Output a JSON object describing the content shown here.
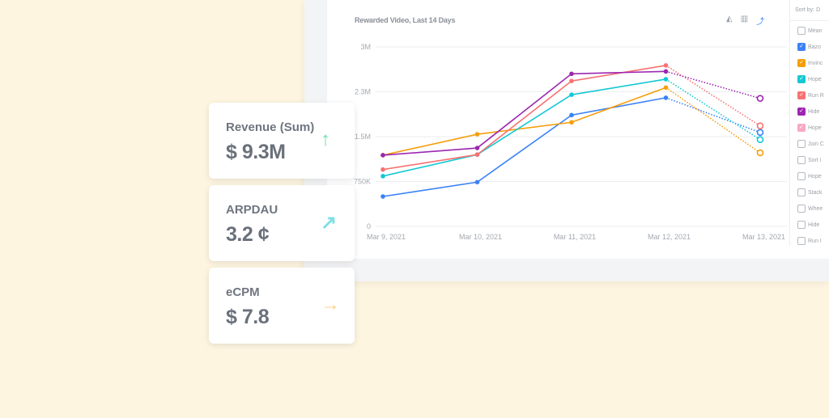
{
  "chart_title": "Rewarded Video, Last 14 Days",
  "toolbar": {
    "icons": [
      "area-chart-icon",
      "bar-chart-icon",
      "line-chart-icon"
    ],
    "active": "line-chart-icon"
  },
  "legend": {
    "sort_label": "Sort by: D",
    "items": [
      {
        "label": "Mean",
        "checked": false,
        "color": ""
      },
      {
        "label": "Bazo",
        "checked": true,
        "color": "#3b82f6"
      },
      {
        "label": "Invinc",
        "checked": true,
        "color": "#f59e0b"
      },
      {
        "label": "Hope",
        "checked": true,
        "color": "#14c8d4"
      },
      {
        "label": "Run R",
        "checked": true,
        "color": "#f87171"
      },
      {
        "label": "Hide",
        "checked": true,
        "color": "#9c27b0"
      },
      {
        "label": "Hope",
        "checked": true,
        "color": "#f9a8c4"
      },
      {
        "label": "Join C",
        "checked": false,
        "color": ""
      },
      {
        "label": "Sort i",
        "checked": false,
        "color": ""
      },
      {
        "label": "Hope",
        "checked": false,
        "color": ""
      },
      {
        "label": "Stack",
        "checked": false,
        "color": ""
      },
      {
        "label": "Whee",
        "checked": false,
        "color": ""
      },
      {
        "label": "Hide",
        "checked": false,
        "color": ""
      },
      {
        "label": "Run I",
        "checked": false,
        "color": ""
      }
    ]
  },
  "cards": [
    {
      "label": "Revenue (Sum)",
      "value": "$ 9.3M",
      "trend": "up",
      "arrow": "↑",
      "color": "#6ee0a8"
    },
    {
      "label": "ARPDAU",
      "value": "3.2 ¢",
      "trend": "up-right",
      "arrow": "↗",
      "color": "#7ee0e6"
    },
    {
      "label": "eCPM",
      "value": "$ 7.8",
      "trend": "flat",
      "arrow": "→",
      "color": "#fcd38a"
    }
  ],
  "chart_data": {
    "type": "line",
    "title": "Rewarded Video, Last 14 Days",
    "categories": [
      "Mar 9, 2021",
      "Mar 10, 2021",
      "Mar 11, 2021",
      "Mar 12, 2021",
      "Mar 13, 2021"
    ],
    "yticks": [
      {
        "v": 0,
        "label": "0"
      },
      {
        "v": 750000,
        "label": "750K"
      },
      {
        "v": 1500000,
        "label": "1.5M"
      },
      {
        "v": 2250000,
        "label": "2.3M"
      },
      {
        "v": 3000000,
        "label": "3M"
      }
    ],
    "ylim": [
      0,
      3000000
    ],
    "grid": true,
    "projected_from_index": 3,
    "series": [
      {
        "legend": "Bazo",
        "color": "#3b82f6",
        "values": [
          500000,
          740000,
          1860000,
          2150000,
          1570000
        ]
      },
      {
        "legend": "Invinc",
        "color": "#f59e0b",
        "values": [
          1190000,
          1540000,
          1740000,
          2320000,
          1230000
        ]
      },
      {
        "legend": "Hope",
        "color": "#14c8d4",
        "values": [
          840000,
          1200000,
          2200000,
          2460000,
          1450000
        ]
      },
      {
        "legend": "Run R",
        "color": "#f87171",
        "values": [
          950000,
          1200000,
          2430000,
          2690000,
          1680000
        ]
      },
      {
        "legend": "Hide",
        "color": "#9c27b0",
        "values": [
          1190000,
          1310000,
          2550000,
          2590000,
          2140000
        ]
      }
    ]
  }
}
